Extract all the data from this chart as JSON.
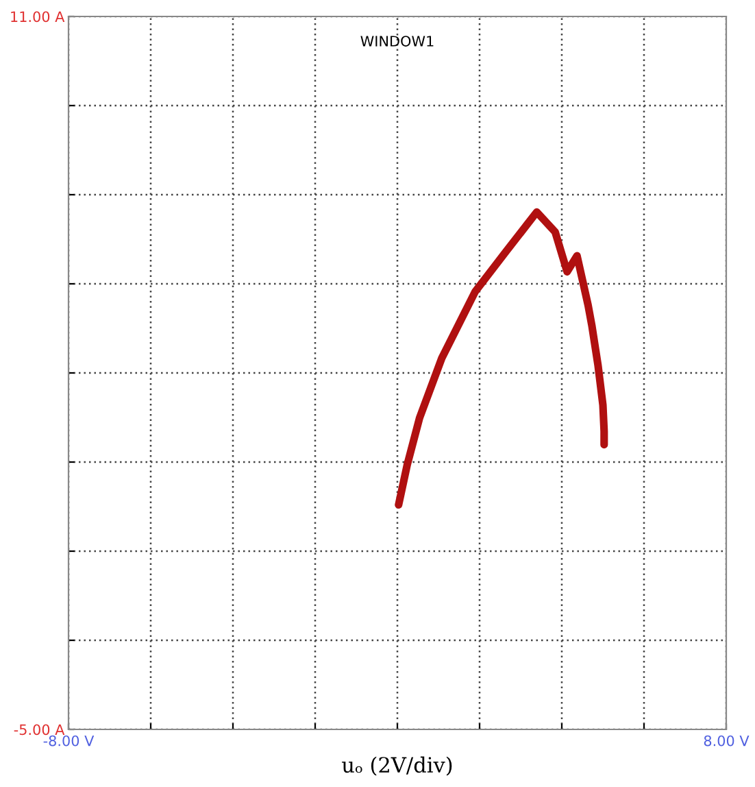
{
  "chart_data": {
    "type": "line",
    "title": "WINDOW1",
    "xlabel": "uₒ (2V/div)",
    "x": [
      0.03,
      0.24,
      0.54,
      1.08,
      1.89,
      2.64,
      3.39,
      3.84,
      4.13,
      4.37,
      4.64,
      4.73,
      4.88,
      5.0,
      5.03,
      5.03
    ],
    "series": [
      {
        "color": "#b01010",
        "values": [
          0.04,
          0.94,
          1.99,
          3.33,
          4.82,
          5.72,
          6.61,
          6.16,
          5.27,
          5.63,
          4.52,
          4.07,
          3.18,
          2.28,
          1.69,
          1.39
        ]
      }
    ],
    "xlim": [
      -8,
      8
    ],
    "ylim": [
      -5,
      11
    ],
    "xticks": [
      {
        "value": -8,
        "label": "-8.00 V"
      },
      {
        "value": -6,
        "label": null
      },
      {
        "value": -4,
        "label": null
      },
      {
        "value": -2,
        "label": null
      },
      {
        "value": 0,
        "label": null
      },
      {
        "value": 2,
        "label": null
      },
      {
        "value": 4,
        "label": null
      },
      {
        "value": 6,
        "label": null
      },
      {
        "value": 8,
        "label": "8.00 V"
      }
    ],
    "yticks": [
      {
        "value": -5,
        "label": "-5.00 A"
      },
      {
        "value": -3,
        "label": null
      },
      {
        "value": -1,
        "label": null
      },
      {
        "value": 1,
        "label": null
      },
      {
        "value": 3,
        "label": null
      },
      {
        "value": 5,
        "label": null
      },
      {
        "value": 7,
        "label": null
      },
      {
        "value": 9,
        "label": null
      },
      {
        "value": 11,
        "label": "11.00 A"
      }
    ],
    "grid": true,
    "line_style": "solid",
    "marker": "none"
  }
}
